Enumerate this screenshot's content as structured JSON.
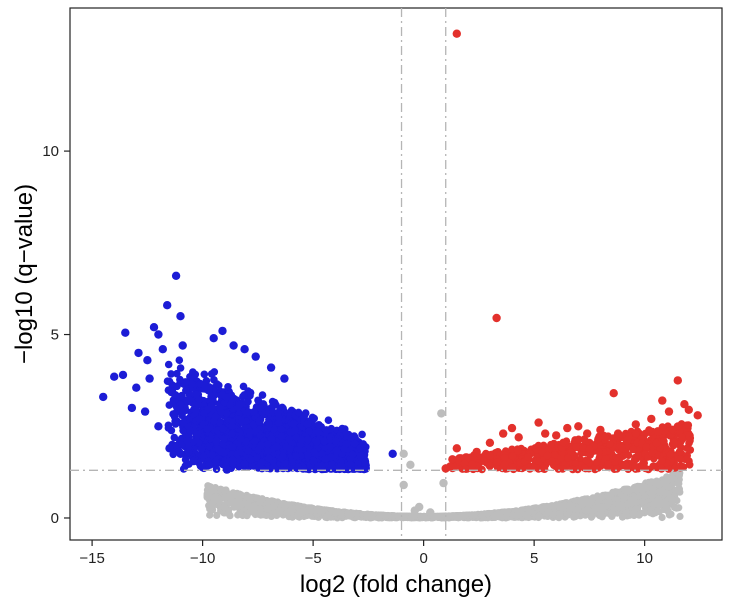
{
  "chart_data": {
    "type": "scatter",
    "title": "",
    "xlabel": "log2 (fold change)",
    "ylabel": "−log10 (q−value)",
    "xlim": [
      -16,
      13.5
    ],
    "ylim": [
      -0.6,
      13.9
    ],
    "x_ticks": [
      -15,
      -10,
      -5,
      0,
      5,
      10
    ],
    "x_tick_labels": [
      "−15",
      "−10",
      "−5",
      "0",
      "5",
      "10"
    ],
    "y_ticks": [
      0,
      5,
      10
    ],
    "y_tick_labels": [
      "0",
      "5",
      "10"
    ],
    "grid": false,
    "legend": "none",
    "thresholds": {
      "log2_fold_change": [
        -1,
        1
      ],
      "neg_log10_q": 1.3
    },
    "series": [
      {
        "color": "#1c1cd6",
        "points": [
          [
            -11.2,
            6.6
          ],
          [
            -11.6,
            5.8
          ],
          [
            -11.0,
            5.5
          ],
          [
            -12.2,
            5.2
          ],
          [
            -12.0,
            5.0
          ],
          [
            -13.5,
            5.05
          ],
          [
            -13.6,
            3.9
          ],
          [
            -14.0,
            3.85
          ],
          [
            -14.5,
            3.3
          ],
          [
            -13.0,
            3.55
          ],
          [
            -13.2,
            3.0
          ],
          [
            -12.4,
            3.8
          ],
          [
            -12.5,
            4.3
          ],
          [
            -12.9,
            4.5
          ],
          [
            -12.6,
            2.9
          ],
          [
            -12.0,
            2.5
          ],
          [
            -11.8,
            4.6
          ],
          [
            -10.9,
            4.7
          ],
          [
            -9.5,
            4.9
          ],
          [
            -9.1,
            5.1
          ],
          [
            -8.6,
            4.7
          ],
          [
            -8.1,
            4.6
          ],
          [
            -7.6,
            4.4
          ],
          [
            -6.9,
            4.1
          ],
          [
            -6.3,
            3.8
          ],
          [
            -11.5,
            1.9
          ],
          [
            -11.0,
            1.75
          ],
          [
            -10.4,
            1.55
          ],
          [
            -9.7,
            1.45
          ],
          [
            -8.9,
            1.32
          ],
          [
            -1.4,
            1.75
          ]
        ]
      },
      {
        "color": "#e3312c",
        "points": [
          [
            1.5,
            13.2
          ],
          [
            3.3,
            5.45
          ],
          [
            8.6,
            3.4
          ],
          [
            11.5,
            3.75
          ],
          [
            12.0,
            2.95
          ],
          [
            12.4,
            2.8
          ],
          [
            11.8,
            3.1
          ],
          [
            10.8,
            3.2
          ],
          [
            11.1,
            2.9
          ],
          [
            10.3,
            2.7
          ],
          [
            9.6,
            2.55
          ],
          [
            8.8,
            2.3
          ],
          [
            8.0,
            2.4
          ],
          [
            7.4,
            2.3
          ],
          [
            6.5,
            2.45
          ],
          [
            5.2,
            2.6
          ],
          [
            5.5,
            2.3
          ],
          [
            4.0,
            2.45
          ],
          [
            4.3,
            2.2
          ],
          [
            3.6,
            2.3
          ],
          [
            3.0,
            2.05
          ],
          [
            2.4,
            1.8
          ],
          [
            1.5,
            1.9
          ],
          [
            1.3,
            1.6
          ],
          [
            1.2,
            1.4
          ],
          [
            1.0,
            1.35
          ],
          [
            2.2,
            1.45
          ],
          [
            6.0,
            2.25
          ],
          [
            7.0,
            2.5
          ],
          [
            10.6,
            2.35
          ],
          [
            9.2,
            2.1
          ]
        ]
      },
      {
        "color": "#bdbdbd",
        "points": [
          [
            0.8,
            2.85
          ],
          [
            -0.9,
            1.75
          ],
          [
            -0.6,
            1.45
          ],
          [
            -0.9,
            0.9
          ],
          [
            0.9,
            0.95
          ],
          [
            -0.2,
            0.3
          ],
          [
            0.1,
            0.02
          ],
          [
            0.3,
            0.15
          ],
          [
            -0.4,
            0.2
          ]
        ]
      }
    ]
  }
}
